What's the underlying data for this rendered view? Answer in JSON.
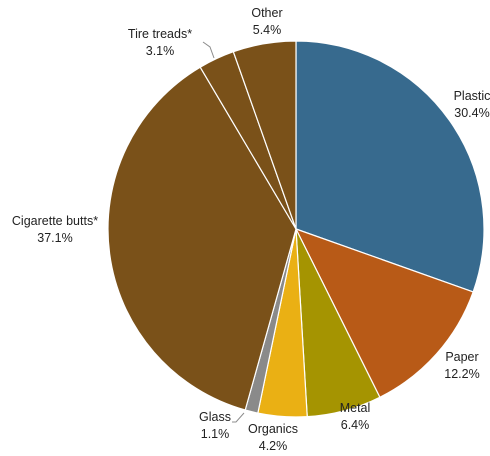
{
  "chart_data": {
    "type": "pie",
    "title": "",
    "slices": [
      {
        "label": "Plastic",
        "value": 30.4,
        "value_label": "30.4%",
        "color": "#376a8e"
      },
      {
        "label": "Paper",
        "value": 12.2,
        "value_label": "12.2%",
        "color": "#b85a17"
      },
      {
        "label": "Metal",
        "value": 6.4,
        "value_label": "6.4%",
        "color": "#a59401"
      },
      {
        "label": "Organics",
        "value": 4.2,
        "value_label": "4.2%",
        "color": "#eab014"
      },
      {
        "label": "Glass",
        "value": 1.1,
        "value_label": "1.1%",
        "color": "#8a8a8a"
      },
      {
        "label": "Cigarette butts*",
        "value": 37.1,
        "value_label": "37.1%",
        "color": "#7a5119"
      },
      {
        "label": "Tire treads*",
        "value": 3.1,
        "value_label": "3.1%",
        "color": "#7a5119"
      },
      {
        "label": "Other",
        "value": 5.4,
        "value_label": "5.4%",
        "color": "#7a5119"
      }
    ],
    "start_angle": "12 o'clock",
    "direction": "clockwise",
    "slice_border_color": "#ffffff",
    "leader_line_color": "#8c8c8c"
  }
}
